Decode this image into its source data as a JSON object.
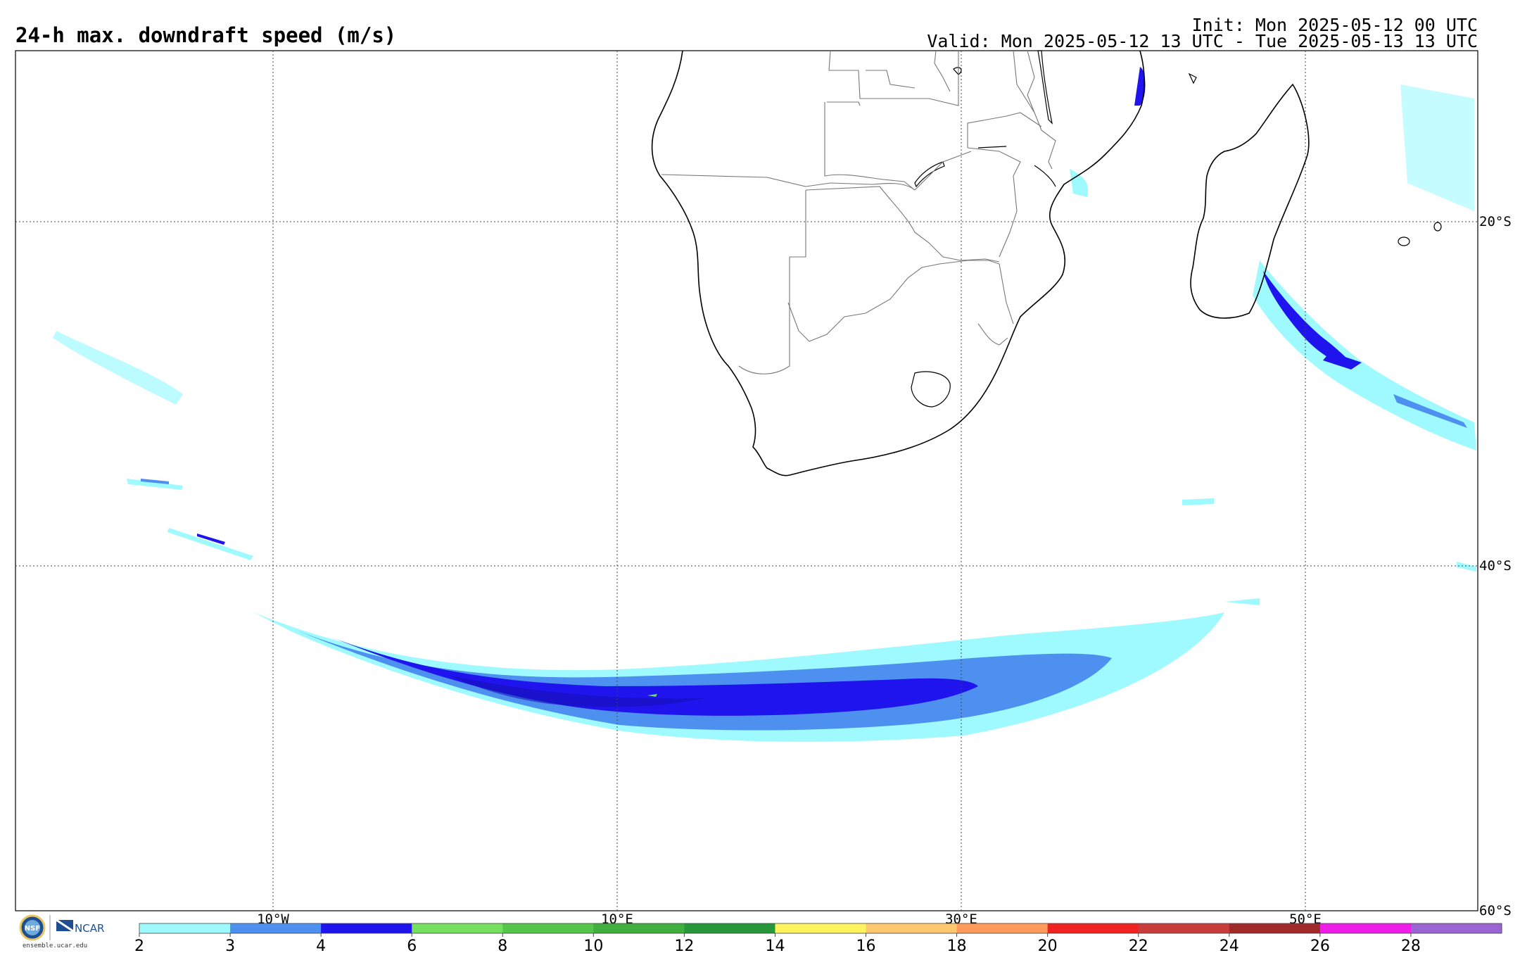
{
  "header": {
    "title": "24-h max. downdraft speed (m/s)",
    "init": "Init: Mon 2025-05-12 00 UTC",
    "valid": "Valid: Mon 2025-05-12 13 UTC - Tue 2025-05-13 13 UTC"
  },
  "map": {
    "lat_labels": [
      "20°S",
      "40°S",
      "60°S"
    ],
    "lon_labels": [
      "10°W",
      "10°E",
      "30°E",
      "50°E"
    ]
  },
  "colorbar": {
    "ticks": [
      "2",
      "3",
      "4",
      "6",
      "8",
      "10",
      "12",
      "14",
      "16",
      "18",
      "20",
      "22",
      "24",
      "26",
      "28"
    ],
    "colors": [
      "#9ffaff",
      "#4d90ef",
      "#1f13ee",
      "#77df5e",
      "#54c64a",
      "#3faf3f",
      "#27983a",
      "#fff45e",
      "#ffc86e",
      "#ff9a5a",
      "#f02222",
      "#c83c3c",
      "#a02a2a",
      "#ee1ee6",
      "#9a64d2"
    ]
  },
  "logos": {
    "nsf": "NSF",
    "ncar": "NCAR",
    "url": "ensemble.ucar.edu"
  }
}
